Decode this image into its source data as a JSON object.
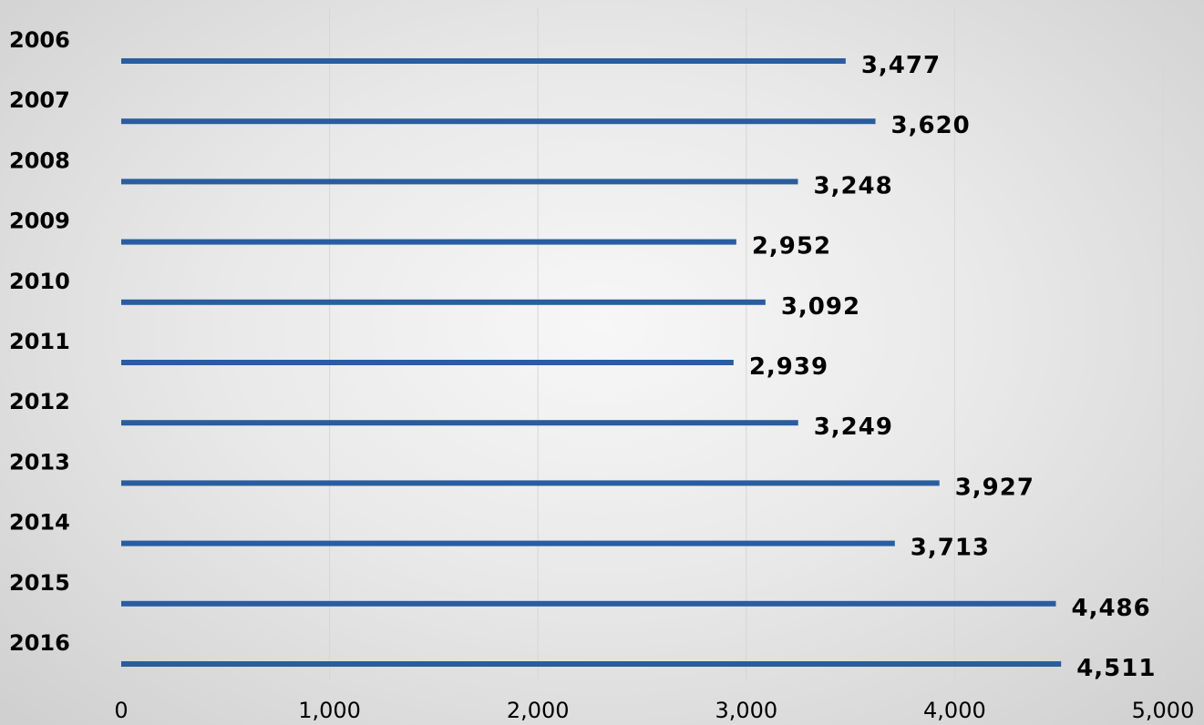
{
  "chart_data": {
    "type": "bar",
    "orientation": "horizontal",
    "title": "",
    "xlabel": "",
    "ylabel": "",
    "categories": [
      "2006",
      "2007",
      "2008",
      "2009",
      "2010",
      "2011",
      "2012",
      "2013",
      "2014",
      "2015",
      "2016"
    ],
    "values": [
      3477,
      3620,
      3248,
      2952,
      3092,
      2939,
      3249,
      3927,
      3713,
      4486,
      4511
    ],
    "data_labels": [
      "3,477",
      "3,620",
      "3,248",
      "2,952",
      "3,092",
      "2,939",
      "3,249",
      "3,927",
      "3,713",
      "4,486",
      "4,511"
    ],
    "xlim": [
      0,
      5000
    ],
    "xticks": [
      0,
      1000,
      2000,
      3000,
      4000,
      5000
    ],
    "xtick_labels": [
      "0",
      "1,000",
      "2,000",
      "3,000",
      "4,000",
      "5,000"
    ],
    "grid": "vertical",
    "legend": "none",
    "bar_color": "#2a5d9f"
  }
}
